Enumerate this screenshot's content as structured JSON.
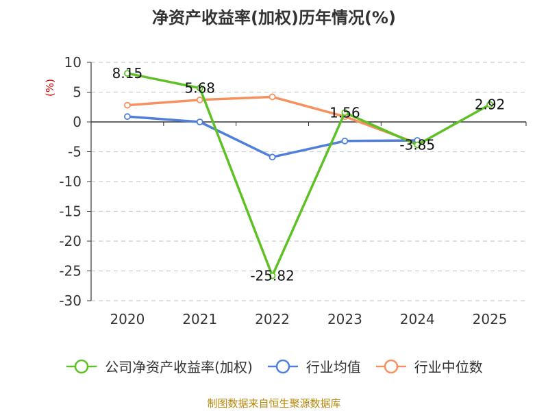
{
  "chart_data": {
    "type": "line",
    "title": "净资产收益率(加权)历年情况(%)",
    "ylabel": "(%)",
    "xlabel": "",
    "categories": [
      "2020",
      "2021",
      "2022",
      "2023",
      "2024",
      "2025"
    ],
    "ylim": [
      -30,
      10
    ],
    "yticks": [
      10,
      5,
      0,
      -5,
      -10,
      -15,
      -20,
      -25,
      -30
    ],
    "grid": "horizontal-dashed",
    "legend_position": "bottom",
    "series": [
      {
        "name": "公司净资产收益率(加权)",
        "color": "#5dc124",
        "values": [
          8.15,
          5.68,
          -25.82,
          1.56,
          -3.85,
          2.92
        ],
        "labels": [
          "8.15",
          "5.68",
          "-25.82",
          "1.56",
          "-3.85",
          "2.92"
        ]
      },
      {
        "name": "行业均值",
        "color": "#4f7fdb",
        "values": [
          0.9,
          0.0,
          -5.9,
          -3.2,
          -3.1,
          null
        ]
      },
      {
        "name": "行业中位数",
        "color": "#f6915e",
        "values": [
          2.8,
          3.7,
          4.2,
          0.9,
          -3.6,
          null
        ]
      }
    ]
  },
  "source_note": "制图数据来自恒生聚源数据库"
}
